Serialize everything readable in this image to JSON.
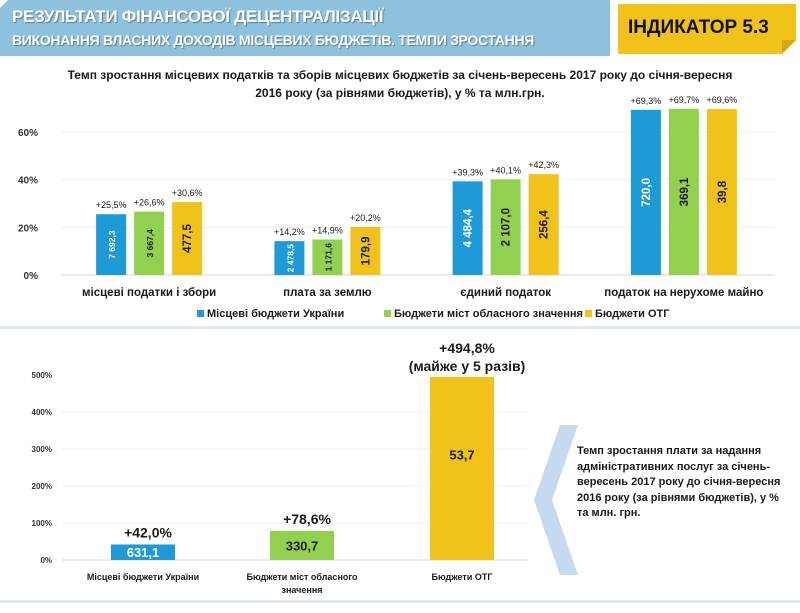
{
  "header": {
    "title": "РЕЗУЛЬТАТИ ФІНАНСОВОЇ ДЕЦЕНТРАЛІЗАЦІЇ",
    "subtitle": "ВИКОНАННЯ ВЛАСНИХ ДОХОДІВ МІСЦЕВИХ БЮДЖЕТІВ. ТЕМПИ ЗРОСТАННЯ",
    "indicator": "ІНДИКАТОР 5.3"
  },
  "colors": {
    "header_bg": "#8ec1dd",
    "indicator_bg": "#f0c21a",
    "series_blue": "#1e9bd7",
    "series_green": "#92d050",
    "series_yellow": "#f0c21a",
    "note_chevron": "#c5d9ef"
  },
  "note": {
    "text": "Темп зростання плати за надання адміністративних послуг за січень-вересень 2017 року до січня-вересня 2016 року (за рівнями бюджетів), у % та млн. грн."
  },
  "chart_data": [
    {
      "type": "bar",
      "title": "Темп зростання місцевих податків та зборів місцевих бюджетів за січень-вересень 2017 року до січня-вересня 2016 року (за рівнями бюджетів), у % та млн.грн.",
      "xlabel": "",
      "ylabel": "",
      "ylim": [
        0,
        60
      ],
      "yticks": [
        "0%",
        "20%",
        "40%",
        "60%"
      ],
      "ytick_values": [
        0,
        20,
        40,
        60
      ],
      "grid": true,
      "legend_position": "bottom",
      "categories": [
        "місцеві податки і збори",
        "плата за землю",
        "єдиний податок",
        "податок на нерухоме майно"
      ],
      "series": [
        {
          "name": "Місцеві бюджети України",
          "color": "#1e9bd7",
          "values": [
            25.5,
            14.2,
            39.3,
            69.3
          ],
          "top_labels": [
            "+25,5%",
            "+14,2%",
            "+39,3%",
            "+69,3%"
          ],
          "inner_labels": [
            "7 692,3",
            "2 478,5",
            "4 484,4",
            "720,0"
          ],
          "inner_label_color": "#ffffff"
        },
        {
          "name": "Бюджети міст обласного значення",
          "color": "#92d050",
          "values": [
            26.6,
            14.9,
            40.1,
            69.7
          ],
          "top_labels": [
            "+26,6%",
            "+14,9%",
            "+40,1%",
            "+69,7%"
          ],
          "inner_labels": [
            "3 667,4",
            "1 171,6",
            "2 107,0",
            "369,1"
          ],
          "inner_label_color": "#1a1a1a"
        },
        {
          "name": "Бюджети ОТГ",
          "color": "#f0c21a",
          "values": [
            30.6,
            20.2,
            42.3,
            69.6
          ],
          "top_labels": [
            "+30,6%",
            "+20,2%",
            "+42,3%",
            "+69,6%"
          ],
          "inner_labels": [
            "477,5",
            "179,9",
            "256,4",
            "39,8"
          ],
          "inner_label_color": "#1a1a1a"
        }
      ]
    },
    {
      "type": "bar",
      "title": "Темп зростання плати за надання адміністративних послуг за січень-вересень 2017 року до січня-вересня 2016 року (за рівнями бюджетів), у % та млн. грн.",
      "xlabel": "",
      "ylabel": "",
      "ylim": [
        0,
        500
      ],
      "yticks": [
        "0%",
        "100%",
        "200%",
        "300%",
        "400%",
        "500%"
      ],
      "ytick_values": [
        0,
        100,
        200,
        300,
        400,
        500
      ],
      "grid": true,
      "categories": [
        "Місцеві  бюджети України",
        "Бюджети міст  обласного значення",
        "Бюджети ОТГ"
      ],
      "category_lines": [
        [
          "Місцеві  бюджети України"
        ],
        [
          "Бюджети міст  обласного",
          "значення"
        ],
        [
          "Бюджети ОТГ"
        ]
      ],
      "values": [
        42.0,
        78.6,
        494.8
      ],
      "colors": [
        "#1e9bd7",
        "#92d050",
        "#f0c21a"
      ],
      "top_labels": [
        "+42,0%",
        "+78,6%",
        "+494,8%"
      ],
      "top_label_extra": [
        "",
        "",
        "(майже у 5 разів)"
      ],
      "inner_labels": [
        "631,1",
        "330,7",
        "53,7"
      ],
      "inner_label_colors": [
        "#ffffff",
        "#1a1a1a",
        "#1a1a1a"
      ]
    }
  ]
}
